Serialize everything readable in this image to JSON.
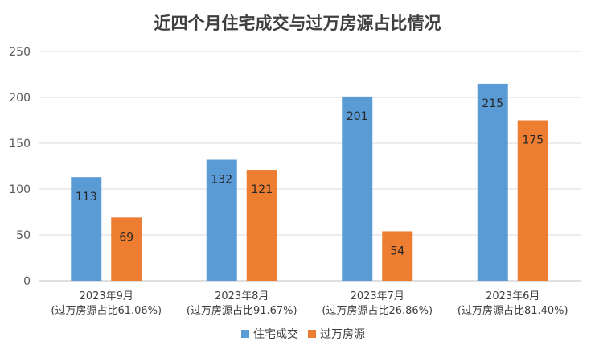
{
  "chart_data": {
    "type": "bar",
    "title": "近四个月住宅成交与过万房源占比情况",
    "categories": [
      [
        "2023年9月",
        "(过万房源占比61.06%)"
      ],
      [
        "2023年8月",
        "(过万房源占比91.67%)"
      ],
      [
        "2023年7月",
        "(过万房源占比26.86%)"
      ],
      [
        "2023年6月",
        "(过万房源占比81.40%)"
      ]
    ],
    "series": [
      {
        "name": "住宅成交",
        "color": "#5b9bd5",
        "values": [
          113,
          132,
          201,
          215
        ]
      },
      {
        "name": "过万房源",
        "color": "#ed7d31",
        "values": [
          69,
          121,
          54,
          175
        ]
      }
    ],
    "ylim": [
      0,
      250
    ],
    "yticks": [
      0,
      50,
      100,
      150,
      200,
      250
    ],
    "grid": true,
    "legend": "bottom"
  }
}
